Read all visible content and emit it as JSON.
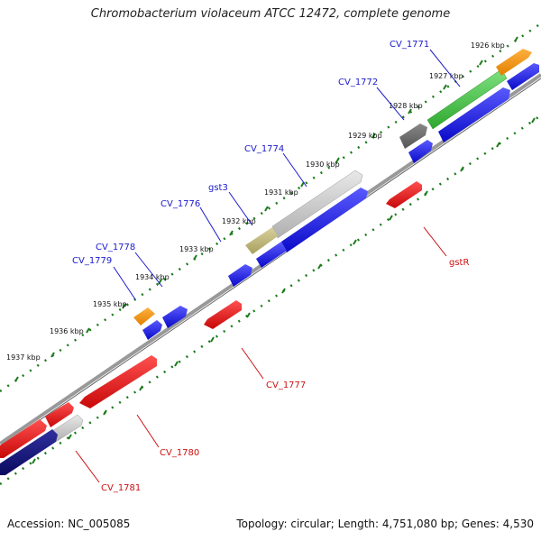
{
  "title": "Chromobacterium violaceum ATCC 12472, complete genome",
  "footer": {
    "accession": "Accession: NC_005085",
    "topology": "Topology: circular; Length: 4,751,080 bp; Genes: 4,530"
  },
  "ticks": [
    "1926 kbp",
    "1927 kbp",
    "1928 kbp",
    "1929 kbp",
    "1930 kbp",
    "1931 kbp",
    "1932 kbp",
    "1933 kbp",
    "1934 kbp",
    "1935 kbp",
    "1936 kbp",
    "1937 kbp"
  ],
  "forward_labels": [
    "CV_1771",
    "CV_1772",
    "CV_1774",
    "gst3",
    "CV_1776",
    "CV_1778",
    "CV_1779"
  ],
  "reverse_labels": [
    "gstR",
    "CV_1777",
    "CV_1780",
    "CV_1781"
  ],
  "colors": {
    "forward_label": "#1a1acc",
    "reverse_label": "#cc1111",
    "blue_feature": "#1515e6",
    "red_feature": "#e61010",
    "ruler_dots": "#1a7a1a",
    "backbone": "#888888"
  }
}
